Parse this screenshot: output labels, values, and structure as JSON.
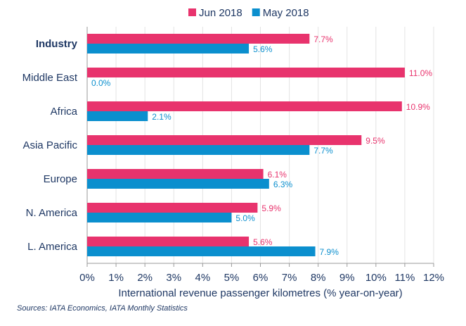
{
  "chart_data": {
    "type": "bar",
    "orientation": "horizontal",
    "categories": [
      "Industry",
      "Middle East",
      "Africa",
      "Asia Pacific",
      "Europe",
      "N. America",
      "L. America"
    ],
    "series": [
      {
        "name": "Jun 2018",
        "color": "#e8336d",
        "values": [
          7.7,
          11.0,
          10.9,
          9.5,
          6.1,
          5.9,
          5.6
        ],
        "labels": [
          "7.7%",
          "11.0%",
          "10.9%",
          "9.5%",
          "6.1%",
          "5.9%",
          "5.6%"
        ]
      },
      {
        "name": "May 2018",
        "color": "#0b8fce",
        "values": [
          5.6,
          0.0,
          2.1,
          7.7,
          6.3,
          5.0,
          7.9
        ],
        "labels": [
          "5.6%",
          "0.0%",
          "2.1%",
          "7.7%",
          "6.3%",
          "5.0%",
          "7.9%"
        ]
      }
    ],
    "bold_category": "Industry",
    "xlim": [
      0,
      12
    ],
    "xticks": [
      0,
      1,
      2,
      3,
      4,
      5,
      6,
      7,
      8,
      9,
      10,
      11,
      12
    ],
    "xtick_labels": [
      "0%",
      "1%",
      "2%",
      "3%",
      "4%",
      "5%",
      "6%",
      "7%",
      "8%",
      "9%",
      "10%",
      "11%",
      "12%"
    ],
    "xlabel": "International revenue passenger kilometres (% year-on-year)",
    "grid": "vertical",
    "legend": "top-center"
  },
  "source": "Sources: IATA Economics, IATA Monthly Statistics"
}
